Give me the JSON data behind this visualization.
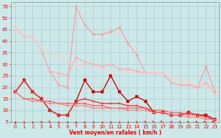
{
  "title": "",
  "xlabel": "Vent moyen/en rafales ( km/h )",
  "ylabel": "",
  "xlim": [
    -0.5,
    23.5
  ],
  "ylim": [
    5,
    57
  ],
  "yticks": [
    5,
    10,
    15,
    20,
    25,
    30,
    35,
    40,
    45,
    50,
    55
  ],
  "xticks": [
    0,
    1,
    2,
    3,
    4,
    5,
    6,
    7,
    8,
    9,
    10,
    11,
    12,
    13,
    14,
    15,
    16,
    17,
    18,
    19,
    20,
    21,
    22,
    23
  ],
  "background_color": "#cce8e8",
  "grid_color": "#aacccc",
  "series": [
    {
      "x": [
        0,
        1,
        2,
        3,
        4,
        5,
        6,
        7,
        8,
        9,
        10,
        11,
        12,
        13,
        14,
        15,
        16,
        17,
        18,
        19,
        20,
        21,
        22,
        23
      ],
      "y": [
        46,
        42,
        42,
        36,
        27,
        21,
        20,
        55,
        47,
        43,
        43,
        44,
        46,
        39,
        34,
        26,
        26,
        26,
        22,
        21,
        21,
        20,
        29,
        18
      ],
      "color": "#ff9999",
      "lw": 0.9,
      "marker": "D",
      "ms": 1.8
    },
    {
      "x": [
        0,
        1,
        2,
        3,
        4,
        5,
        6,
        7,
        8,
        9,
        10,
        11,
        12,
        13,
        14,
        15,
        16,
        17,
        18,
        19,
        20,
        21,
        22,
        23
      ],
      "y": [
        46,
        42,
        42,
        36,
        27,
        26,
        25,
        33,
        31,
        30,
        29,
        30,
        28,
        28,
        27,
        26,
        26,
        26,
        22,
        21,
        21,
        20,
        22,
        17
      ],
      "color": "#ffaaaa",
      "lw": 0.9,
      "marker": "D",
      "ms": 1.8
    },
    {
      "x": [
        0,
        1,
        2,
        3,
        4,
        5,
        6,
        7,
        8,
        9,
        10,
        11,
        12,
        13,
        14,
        15,
        16,
        17,
        18,
        19,
        20,
        21,
        22,
        23
      ],
      "y": [
        46,
        42,
        42,
        36,
        35,
        33,
        31,
        30,
        29,
        28,
        28,
        27,
        27,
        27,
        26,
        26,
        26,
        26,
        24,
        23,
        22,
        21,
        21,
        17
      ],
      "color": "#ffcccc",
      "lw": 0.9,
      "marker": "D",
      "ms": 1.5
    },
    {
      "x": [
        0,
        1,
        2,
        3,
        4,
        5,
        6,
        7,
        8,
        9,
        10,
        11,
        12,
        13,
        14,
        15,
        16,
        17,
        18,
        19,
        20,
        21,
        22,
        23
      ],
      "y": [
        18,
        23,
        18,
        15,
        10,
        8,
        8,
        14,
        23,
        18,
        18,
        25,
        18,
        14,
        16,
        14,
        9,
        9,
        8,
        8,
        9,
        8,
        8,
        6
      ],
      "color": "#cc0000",
      "lw": 1.0,
      "marker": "s",
      "ms": 2.5
    },
    {
      "x": [
        0,
        1,
        2,
        3,
        4,
        5,
        6,
        7,
        8,
        9,
        10,
        11,
        12,
        13,
        14,
        15,
        16,
        17,
        18,
        19,
        20,
        21,
        22,
        23
      ],
      "y": [
        18,
        23,
        18,
        15,
        10,
        8,
        8,
        14,
        15,
        14,
        13,
        13,
        13,
        12,
        12,
        11,
        9,
        9,
        8,
        8,
        9,
        8,
        7,
        6
      ],
      "color": "#ee3333",
      "lw": 1.0,
      "marker": "s",
      "ms": 2.0
    },
    {
      "x": [
        0,
        1,
        2,
        3,
        4,
        5,
        6,
        7,
        8,
        9,
        10,
        11,
        12,
        13,
        14,
        15,
        16,
        17,
        18,
        19,
        20,
        21,
        22,
        23
      ],
      "y": [
        18,
        15,
        15,
        14,
        14,
        13,
        13,
        13,
        13,
        12,
        12,
        11,
        11,
        11,
        11,
        11,
        10,
        10,
        9,
        9,
        8,
        8,
        7,
        6
      ],
      "color": "#ff5555",
      "lw": 0.9,
      "marker": "s",
      "ms": 1.8
    },
    {
      "x": [
        0,
        1,
        2,
        3,
        4,
        5,
        6,
        7,
        8,
        9,
        10,
        11,
        12,
        13,
        14,
        15,
        16,
        17,
        18,
        19,
        20,
        21,
        22,
        23
      ],
      "y": [
        18,
        15,
        14,
        14,
        13,
        13,
        12,
        12,
        12,
        11,
        11,
        11,
        11,
        10,
        10,
        10,
        9,
        9,
        8,
        8,
        7,
        7,
        6,
        6
      ],
      "color": "#ff7777",
      "lw": 0.8,
      "marker": "s",
      "ms": 1.5
    }
  ],
  "arrow_angles": [
    90,
    95,
    95,
    100,
    105,
    90,
    95,
    90,
    90,
    95,
    95,
    95,
    95,
    95,
    100,
    105,
    110,
    115,
    120,
    125,
    130,
    135,
    140,
    150
  ]
}
